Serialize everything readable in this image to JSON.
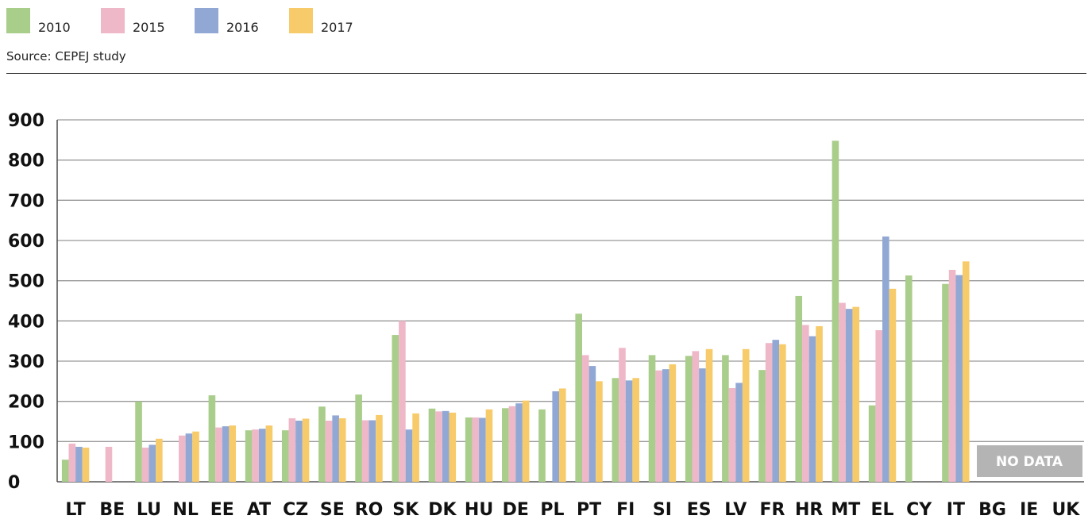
{
  "legend": [
    {
      "label": "2010",
      "color": "#a9cd8a"
    },
    {
      "label": "2015",
      "color": "#efb8c8"
    },
    {
      "label": "2016",
      "color": "#92a8d4"
    },
    {
      "label": "2017",
      "color": "#f7cb6a"
    }
  ],
  "source": "Source: CEPEJ study",
  "no_data": "NO DATA",
  "chart_data": {
    "type": "bar",
    "categories": [
      "LT",
      "BE",
      "LU",
      "NL",
      "EE",
      "AT",
      "CZ",
      "SE",
      "RO",
      "SK",
      "DK",
      "HU",
      "DE",
      "PL",
      "PT",
      "FI",
      "SI",
      "ES",
      "LV",
      "FR",
      "HR",
      "MT",
      "EL",
      "CY",
      "IT",
      "BG",
      "IE",
      "UK"
    ],
    "series": [
      {
        "name": "2010",
        "color": "#a9cd8a",
        "values": [
          55,
          null,
          200,
          null,
          215,
          128,
          128,
          187,
          217,
          365,
          182,
          160,
          183,
          180,
          418,
          258,
          315,
          313,
          315,
          278,
          462,
          848,
          190,
          513,
          492,
          null,
          null,
          null
        ]
      },
      {
        "name": "2015",
        "color": "#efb8c8",
        "values": [
          95,
          87,
          85,
          115,
          135,
          130,
          158,
          152,
          153,
          400,
          175,
          160,
          188,
          null,
          315,
          333,
          277,
          325,
          233,
          345,
          390,
          445,
          377,
          null,
          527,
          null,
          null,
          null
        ]
      },
      {
        "name": "2016",
        "color": "#92a8d4",
        "values": [
          87,
          null,
          92,
          120,
          138,
          132,
          152,
          165,
          153,
          130,
          176,
          159,
          195,
          225,
          288,
          252,
          280,
          282,
          246,
          353,
          362,
          430,
          610,
          null,
          514,
          null,
          null,
          null
        ]
      },
      {
        "name": "2017",
        "color": "#f7cb6a",
        "values": [
          85,
          null,
          107,
          125,
          140,
          140,
          157,
          158,
          166,
          170,
          172,
          180,
          202,
          232,
          250,
          258,
          292,
          330,
          330,
          342,
          387,
          435,
          480,
          null,
          548,
          null,
          null,
          null
        ]
      }
    ],
    "yticks": [
      0,
      100,
      200,
      300,
      400,
      500,
      600,
      700,
      800,
      900
    ],
    "ylim": [
      0,
      900
    ],
    "grid": true,
    "legend_position": "top-left"
  }
}
